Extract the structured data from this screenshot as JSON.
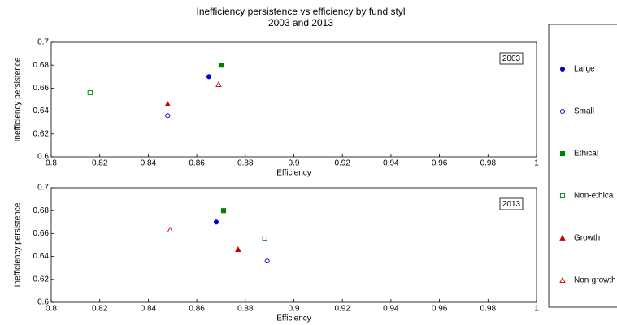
{
  "chart_data": [
    {
      "type": "scatter",
      "title": "Inefficiency persistence vs efficiency by fund styl",
      "subtitle": "2003 and 2013",
      "annotation": "2003",
      "xlabel": "Efficiency",
      "ylabel": "Inefficiency persistence",
      "xlim": [
        0.8,
        1
      ],
      "xticks": [
        0.8,
        0.82,
        0.84,
        0.86,
        0.88,
        0.9,
        0.92,
        0.94,
        0.96,
        0.98,
        1
      ],
      "ylim": [
        0.6,
        0.7
      ],
      "yticks": [
        0.6,
        0.62,
        0.64,
        0.66,
        0.68,
        0.7
      ],
      "series": [
        {
          "name": "Large",
          "color": "#0000cc",
          "marker": "circle-filled",
          "x": [
            0.865
          ],
          "values": [
            0.67
          ]
        },
        {
          "name": "Small",
          "color": "#0000cc",
          "marker": "circle-open",
          "x": [
            0.848
          ],
          "values": [
            0.636
          ]
        },
        {
          "name": "Ethical",
          "color": "#007f00",
          "marker": "square-filled",
          "x": [
            0.87
          ],
          "values": [
            0.68
          ]
        },
        {
          "name": "Non-ethica",
          "color": "#007f00",
          "marker": "square-open",
          "x": [
            0.816
          ],
          "values": [
            0.656
          ]
        },
        {
          "name": "Growth",
          "color": "#cc0000",
          "marker": "triangle-filled",
          "x": [
            0.848
          ],
          "values": [
            0.646
          ]
        },
        {
          "name": "Non-growth",
          "color": "#cc0000",
          "marker": "triangle-open",
          "x": [
            0.869
          ],
          "values": [
            0.663
          ]
        }
      ]
    },
    {
      "type": "scatter",
      "annotation": "2013",
      "xlabel": "Efficiency",
      "ylabel": "Inefficiency persistence",
      "xlim": [
        0.8,
        1
      ],
      "xticks": [
        0.8,
        0.82,
        0.84,
        0.86,
        0.88,
        0.9,
        0.92,
        0.94,
        0.96,
        0.98,
        1
      ],
      "ylim": [
        0.6,
        0.7
      ],
      "yticks": [
        0.6,
        0.62,
        0.64,
        0.66,
        0.68,
        0.7
      ],
      "series": [
        {
          "color": "#0000cc",
          "marker": "circle-filled",
          "x": [
            0.868
          ],
          "values": [
            0.67
          ]
        },
        {
          "color": "#0000cc",
          "marker": "circle-open",
          "x": [
            0.889
          ],
          "values": [
            0.636
          ]
        },
        {
          "color": "#007f00",
          "marker": "square-filled",
          "x": [
            0.871
          ],
          "values": [
            0.68
          ]
        },
        {
          "color": "#007f00",
          "marker": "square-open",
          "x": [
            0.888
          ],
          "values": [
            0.656
          ]
        },
        {
          "color": "#cc0000",
          "marker": "triangle-filled",
          "x": [
            0.877
          ],
          "values": [
            0.646
          ]
        },
        {
          "color": "#cc0000",
          "marker": "triangle-open",
          "x": [
            0.849
          ],
          "values": [
            0.663
          ]
        }
      ]
    }
  ]
}
